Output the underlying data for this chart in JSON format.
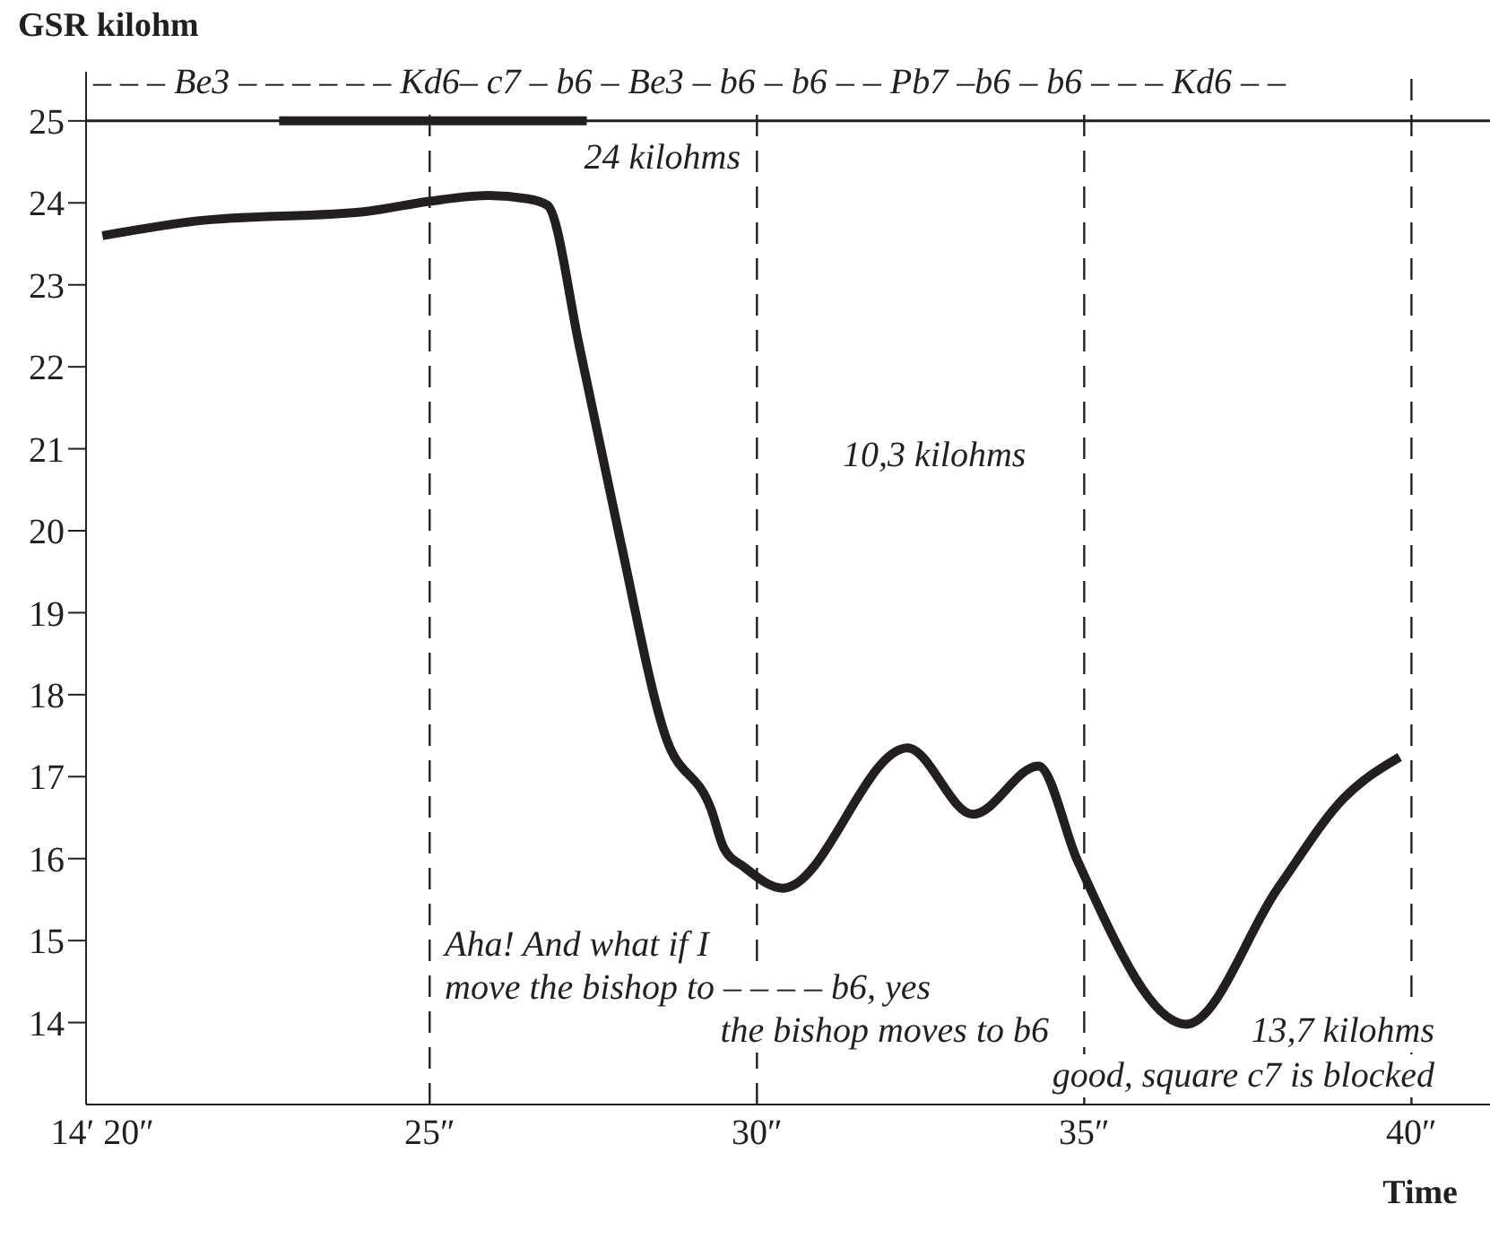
{
  "chart_data": {
    "type": "line",
    "ylabel": "GSR kilohm",
    "xlabel": "Time",
    "xlim": [
      19.75,
      41.2
    ],
    "ylim": [
      13,
      25.6
    ],
    "xticks": [
      {
        "value": 20,
        "label": "14′ 20″"
      },
      {
        "value": 25,
        "label": "25″"
      },
      {
        "value": 30,
        "label": "30″"
      },
      {
        "value": 35,
        "label": "35″"
      },
      {
        "value": 40,
        "label": "40″"
      }
    ],
    "yticks": [
      14,
      15,
      16,
      17,
      18,
      19,
      20,
      21,
      22,
      23,
      24,
      25
    ],
    "grid": false,
    "marker": "none",
    "line_style": "solid",
    "series": [
      {
        "color": "#231f20",
        "x": [
          20.0,
          21.45,
          24.07,
          25.0,
          25.9,
          26.5,
          26.8,
          27.3,
          27.9,
          28.6,
          29.3,
          29.5,
          29.8,
          30.4,
          32.3,
          33.3,
          34.3,
          34.9,
          36.56,
          37.96,
          38.97,
          39.82
        ],
        "values": [
          23.6,
          23.78,
          23.9,
          24.02,
          24.09,
          24.05,
          23.97,
          22.2,
          19.93,
          17.5,
          16.6,
          16.12,
          15.9,
          15.64,
          17.35,
          16.54,
          17.13,
          15.97,
          13.98,
          15.64,
          16.74,
          17.24
        ]
      },
      {
        "color": "#231f20",
        "x": [
          22.7,
          27.4
        ],
        "values": [
          25,
          25
        ]
      }
    ],
    "ref_lines": [
      {
        "axis": "y",
        "value": 25,
        "line_style": "solid",
        "color": "#231f20"
      },
      {
        "axis": "x",
        "value": 25,
        "line_style": "dashed",
        "color": "#231f20"
      },
      {
        "axis": "x",
        "value": 30,
        "line_style": "dashed",
        "color": "#231f20"
      },
      {
        "axis": "x",
        "value": 35,
        "line_style": "dashed",
        "color": "#231f20"
      },
      {
        "axis": "x",
        "value": 40,
        "line_style": "dashed",
        "color": "#231f20"
      }
    ],
    "annotations": [
      "– – – Be3 – – – – – – Kd6– c7 – b6 – Be3 – b6 – b6 – – Pb7 –b6 – b6 – – – Kd6 – –",
      "24 kilohms",
      "10,3 kilohms",
      "Aha! And what if I",
      "move the bishop to – – – – b6, yes",
      "the bishop moves to b6",
      "13,7 kilohms",
      "good, square c7 is blocked"
    ]
  }
}
